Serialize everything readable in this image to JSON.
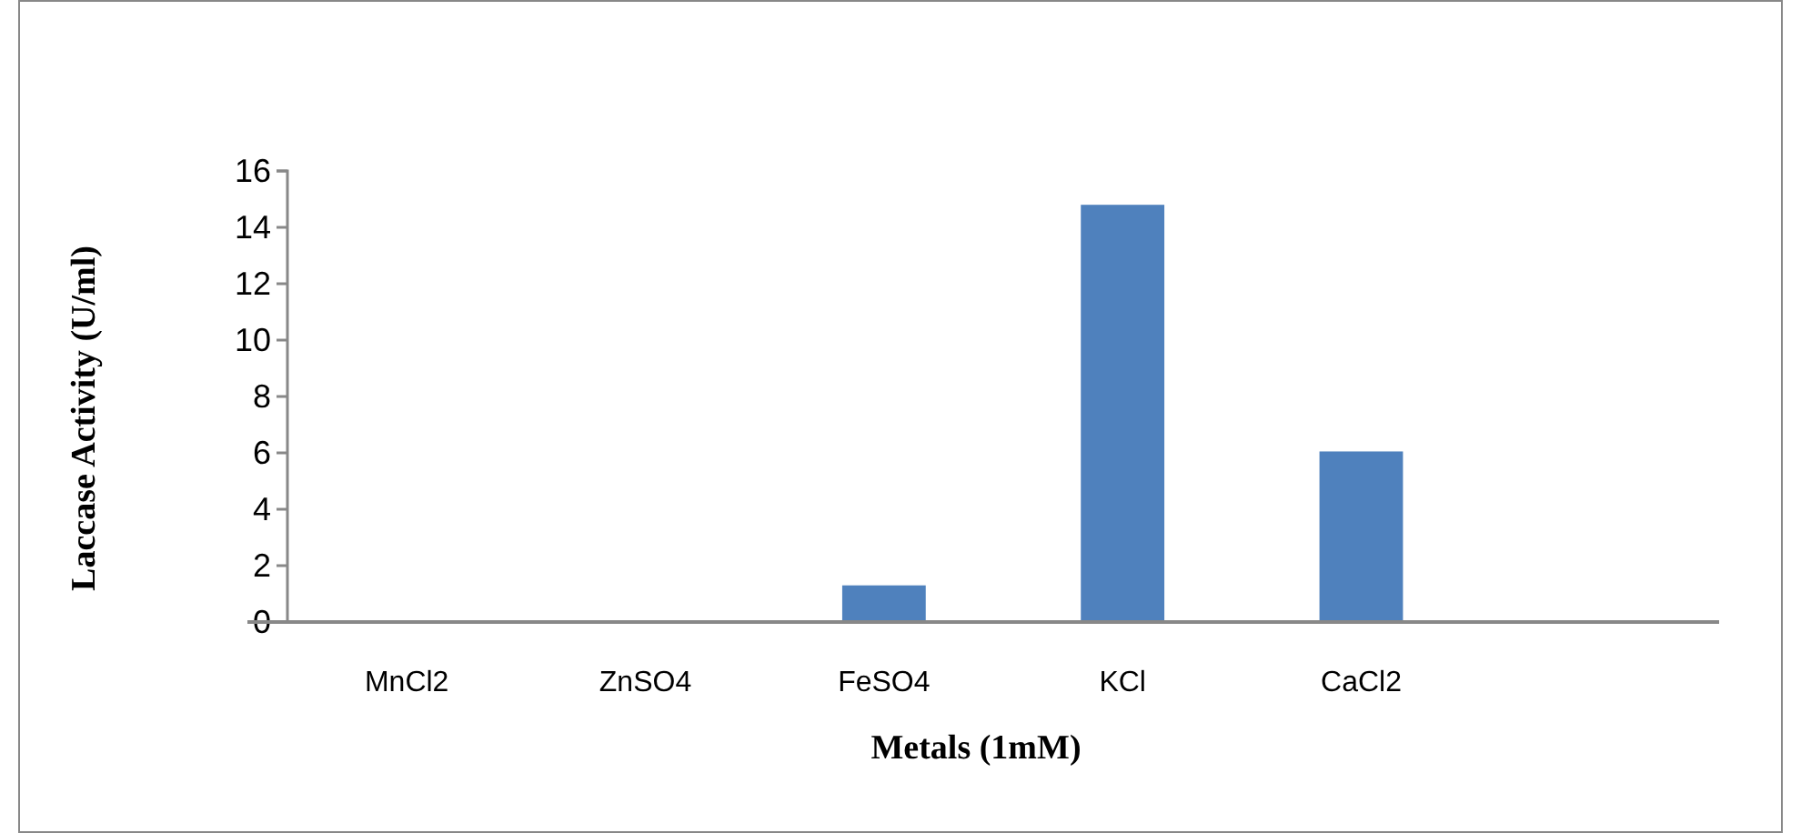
{
  "chart_data": {
    "type": "bar",
    "categories": [
      "MnCl2",
      "ZnSO4",
      "FeSO4",
      "KCl",
      "CaCl2",
      null
    ],
    "values": [
      0,
      0,
      1.3,
      14.8,
      6.05,
      null
    ],
    "color": "#4f81bd",
    "xlabel": "Metals (1mM)",
    "ylabel": "Laccase Activity (U/ml)",
    "ylim": [
      0,
      16
    ],
    "yticks": [
      0,
      2,
      4,
      6,
      8,
      10,
      12,
      14,
      16
    ],
    "grid": false,
    "legend": false
  }
}
